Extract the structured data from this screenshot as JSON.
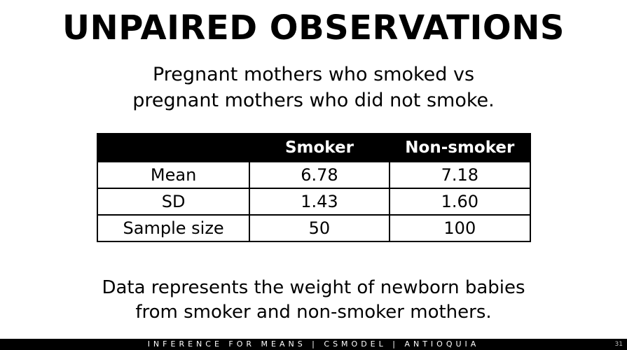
{
  "title": "UNPAIRED OBSERVATIONS",
  "subtitle": {
    "line1": "Pregnant mothers who smoked vs",
    "line2": "pregnant mothers who did not smoke."
  },
  "table": {
    "headers": [
      "",
      "Smoker",
      "Non-smoker"
    ],
    "rows": [
      {
        "label": "Mean",
        "smoker": "6.78",
        "non_smoker": "7.18"
      },
      {
        "label": "SD",
        "smoker": "1.43",
        "non_smoker": "1.60"
      },
      {
        "label": "Sample size",
        "smoker": "50",
        "non_smoker": "100"
      }
    ]
  },
  "caption": {
    "line1": "Data represents the weight of newborn babies",
    "line2": "from smoker and non-smoker mothers."
  },
  "footer": {
    "text": "INFERENCE FOR MEANS | CSMODEL | ANTIOQUIA",
    "page_number": "31"
  }
}
